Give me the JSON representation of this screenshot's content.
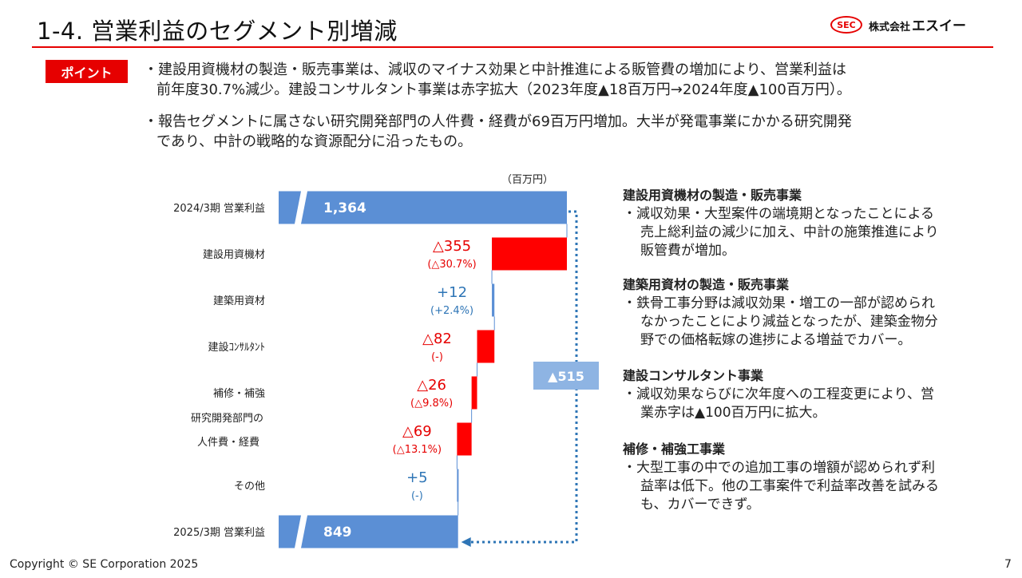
{
  "header": {
    "title": "1-4. 営業利益のセグメント別増減",
    "logo_mark": "SEC",
    "logo_company_prefix": "株式会社",
    "logo_company_name": "エスイー"
  },
  "point": {
    "badge": "ポイント",
    "bullet1_line1": "・建設用資機材の製造・販売事業は、減収のマイナス効果と中計推進による販管費の増加により、営業利益は",
    "bullet1_line2": "前年度30.7%減少。建設コンサルタント事業は赤字拡大（2023年度▲18百万円→2024年度▲100百万円）。",
    "bullet2_line1": "・報告セグメントに属さない研究開発部門の人件費・経費が69百万円増加。大半が発電事業にかかる研究開発",
    "bullet2_line2": "であり、中計の戦略的な資源配分に沿ったもの。"
  },
  "chart_data": {
    "type": "waterfall",
    "unit_label": "（百万円）",
    "colors": {
      "total": "#5b8fd5",
      "decrease": "#ff0000",
      "increase": "#5b8fd5",
      "total_change_box": "#8eb4e3",
      "decrease_text": "#e60000",
      "increase_text": "#2e75b6"
    },
    "start": {
      "label": "2024/3期 営業利益",
      "value": 1364,
      "display": "1,364"
    },
    "steps": [
      {
        "label": "建設用資機材",
        "value": -355,
        "display": "△355",
        "sub": "(△30.7%)"
      },
      {
        "label": "建築用資材",
        "value": 12,
        "display": "+12",
        "sub": "(+2.4%)"
      },
      {
        "label": "建設ｺﾝｻﾙﾀﾝﾄ",
        "value": -82,
        "display": "△82",
        "sub": "(-)"
      },
      {
        "label": "補修・補強",
        "value": -26,
        "display": "△26",
        "sub": "(△9.8%)"
      },
      {
        "label": "研究開発部門の人件費・経費",
        "label_line1": "研究開発部門の",
        "label_line2": "人件費・経費",
        "value": -69,
        "display": "△69",
        "sub": "(△13.1%)"
      },
      {
        "label": "その他",
        "value": 5,
        "display": "+5",
        "sub": "(-)"
      }
    ],
    "end": {
      "label": "2025/3期 営業利益",
      "value": 849,
      "display": "849"
    },
    "total_change": {
      "value": -515,
      "display": "▲515"
    }
  },
  "notes": [
    {
      "heading": "建設用資機材の製造・販売事業",
      "lines": [
        "・減収効果・大型案件の端境期となったことによる",
        "売上総利益の減少に加え、中計の施策推進により",
        "販管費が増加。"
      ]
    },
    {
      "heading": "建築用資材の製造・販売事業",
      "lines": [
        "・鉄骨工事分野は減収効果・増工の一部が認められ",
        "なかったことにより減益となったが、建築金物分",
        "野での価格転嫁の進捗による増益でカバー。"
      ]
    },
    {
      "heading": "建設コンサルタント事業",
      "lines": [
        "・減収効果ならびに次年度への工程変更により、営",
        "業赤字は▲100百万円に拡大。"
      ]
    },
    {
      "heading": "補修・補強工事業",
      "lines": [
        "・大型工事の中での追加工事の増額が認められず利",
        "益率は低下。他の工事案件で利益率改善を試みる",
        "も、カバーできず。"
      ]
    }
  ],
  "footer": {
    "copyright": "Copyright © SE Corporation 2025",
    "page": "7"
  }
}
